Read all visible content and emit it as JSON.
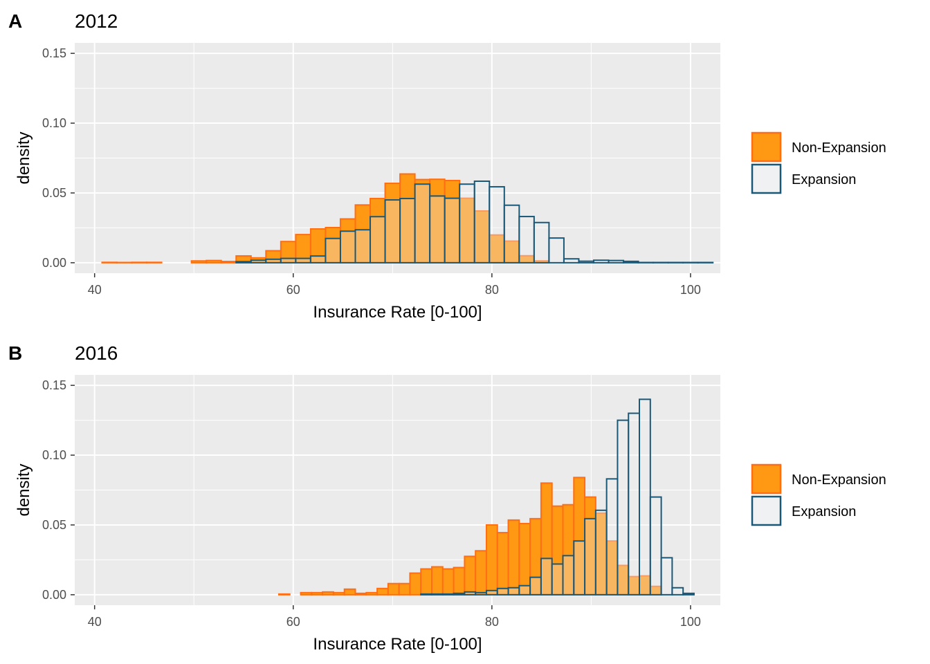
{
  "chart_data": [
    {
      "type": "bar",
      "panel": "A",
      "title": "2012",
      "xlabel": "Insurance Rate [0-100]",
      "ylabel": "density",
      "xlim": [
        38,
        103
      ],
      "ylim": [
        -0.0075,
        0.1575
      ],
      "x_ticks": [
        40,
        60,
        80,
        100
      ],
      "x_tick_labels": [
        "40",
        "60",
        "80",
        "100"
      ],
      "y_ticks": [
        0,
        0.05,
        0.1,
        0.15
      ],
      "y_tick_labels": [
        "0.00",
        "0.05",
        "0.10",
        "0.15"
      ],
      "grid": true,
      "legend_position": "right",
      "bin_width": 1.5,
      "bin_start": 40.75,
      "series": [
        {
          "name": "Non-Expansion",
          "fill": "#FF9913",
          "stroke": "#FF6E15",
          "values": [
            0.0003,
            0.0002,
            0.0003,
            0.0003,
            0,
            0,
            0.0013,
            0.0016,
            0.0009,
            0.0049,
            0.0035,
            0.0086,
            0.0152,
            0.0202,
            0.0243,
            0.0252,
            0.0314,
            0.0414,
            0.046,
            0.0569,
            0.0636,
            0.0596,
            0.0598,
            0.0589,
            0.0462,
            0.0371,
            0.0199,
            0.0155,
            0.005,
            0.0013,
            0,
            0,
            0,
            0,
            0,
            0,
            0,
            0,
            0,
            0,
            0,
            0
          ]
        },
        {
          "name": "Expansion",
          "fill": "#EDEFF2",
          "stroke": "#1A5878",
          "values": [
            0,
            0,
            0,
            0,
            0,
            0,
            0,
            0,
            0,
            0.0008,
            0.0018,
            0.0025,
            0.0031,
            0.0031,
            0.0048,
            0.0174,
            0.0226,
            0.0236,
            0.033,
            0.045,
            0.046,
            0.0563,
            0.0478,
            0.0462,
            0.0563,
            0.0584,
            0.0544,
            0.0412,
            0.0331,
            0.0288,
            0.0177,
            0.0028,
            0.0011,
            0.0018,
            0.0016,
            0.001,
            0.0002,
            0.0002,
            0.0002,
            0.0002,
            0.0002,
            0
          ]
        }
      ]
    },
    {
      "type": "bar",
      "panel": "B",
      "title": "2016",
      "xlabel": "Insurance Rate [0-100]",
      "ylabel": "density",
      "xlim": [
        38,
        103
      ],
      "ylim": [
        -0.0075,
        0.1575
      ],
      "x_ticks": [
        40,
        60,
        80,
        100
      ],
      "x_tick_labels": [
        "40",
        "60",
        "80",
        "100"
      ],
      "y_ticks": [
        0,
        0.05,
        0.1,
        0.15
      ],
      "y_tick_labels": [
        "0.00",
        "0.05",
        "0.10",
        "0.15"
      ],
      "grid": true,
      "legend_position": "right",
      "bin_width": 1.1,
      "bin_start": 40.95,
      "series": [
        {
          "name": "Non-Expansion",
          "fill": "#FF9913",
          "stroke": "#FF6E15",
          "values": [
            0,
            0,
            0,
            0,
            0,
            0,
            0,
            0,
            0,
            0,
            0,
            0,
            0,
            0,
            0,
            0,
            0.0005,
            0,
            0.0015,
            0.0015,
            0.002,
            0.0015,
            0.004,
            0.001,
            0.0015,
            0.0045,
            0.008,
            0.008,
            0.0155,
            0.0185,
            0.02,
            0.0185,
            0.0195,
            0.0275,
            0.0315,
            0.05,
            0.0445,
            0.0535,
            0.051,
            0.0545,
            0.08,
            0.0635,
            0.0645,
            0.084,
            0.07,
            0.0585,
            0.0385,
            0.021,
            0.013,
            0.0135,
            0.006,
            0,
            0,
            0,
            0,
            0,
            0,
            0
          ]
        },
        {
          "name": "Expansion",
          "fill": "#EDEFF2",
          "stroke": "#1A5878",
          "values": [
            0,
            0,
            0,
            0,
            0,
            0,
            0,
            0,
            0,
            0,
            0,
            0,
            0,
            0,
            0,
            0,
            0,
            0,
            0,
            0,
            0,
            0,
            0,
            0,
            0,
            0,
            0,
            0,
            0,
            0.0005,
            0.0005,
            0.0005,
            0.001,
            0.002,
            0.0015,
            0.003,
            0.0045,
            0.005,
            0.0065,
            0.0125,
            0.026,
            0.022,
            0.028,
            0.0385,
            0.0545,
            0.0605,
            0.083,
            0.125,
            0.13,
            0.14,
            0.07,
            0.0265,
            0.005,
            0.001,
            0,
            0,
            0,
            0
          ]
        }
      ]
    }
  ]
}
